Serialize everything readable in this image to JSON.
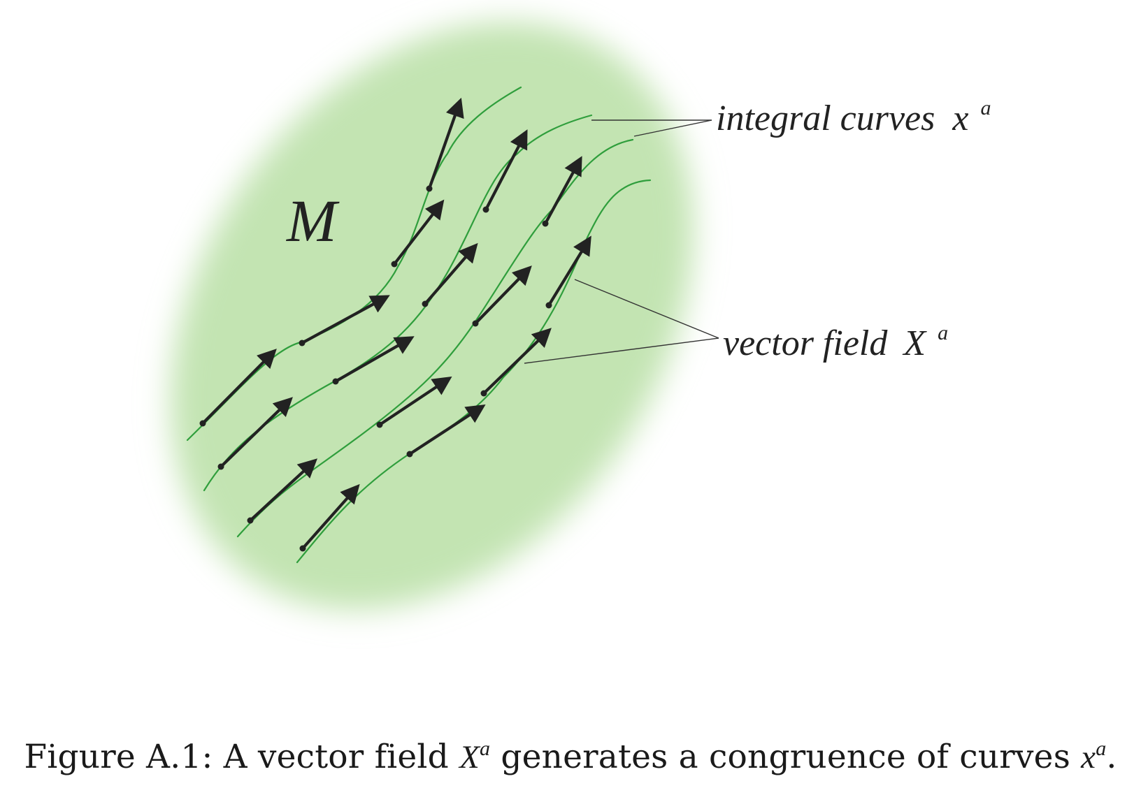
{
  "diagram": {
    "region_label": "M",
    "label_integral_curves": "integral curves",
    "label_integral_curves_symbol": "x",
    "label_vector_field": "vector field",
    "label_vector_field_symbol": "X",
    "superscript": "a",
    "colors": {
      "region_fill": "#c3e4b2",
      "curve": "#2f9e3c",
      "arrow": "#222222"
    }
  },
  "caption": {
    "prefix": "Figure A.1: A vector field",
    "symbol_1": "X",
    "superscript_1": "a",
    "middle": "generates a congruence of curves",
    "symbol_2": "x",
    "superscript_2": "a",
    "end": "."
  }
}
